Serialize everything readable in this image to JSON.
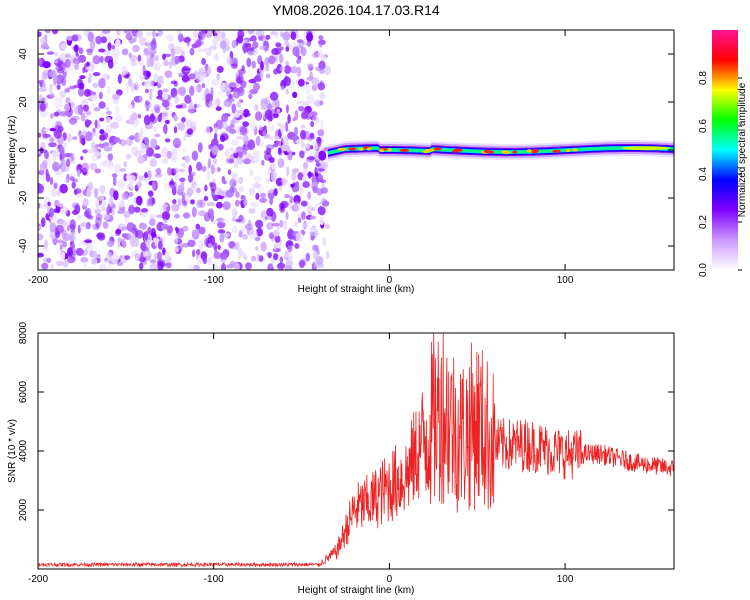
{
  "title": "YM08.2026.104.17.03.R14",
  "chart_data": [
    {
      "type": "heatmap",
      "name": "spectrogram",
      "xlabel": "Height of straight line (km)",
      "ylabel": "Frequency (Hz)",
      "xlim": [
        -200,
        162
      ],
      "ylim": [
        -50,
        50
      ],
      "xticks": [
        -200,
        -100,
        0,
        100
      ],
      "yticks": [
        -40,
        -20,
        0,
        20,
        40
      ],
      "noise_region_x": [
        -200,
        -35
      ],
      "signal_region_x": [
        -35,
        162
      ],
      "signal_center_hz": 0,
      "colorbar": {
        "label": "Normalized spectral amplitude",
        "ticks": [
          0.0,
          0.2,
          0.4,
          0.6,
          0.8
        ],
        "range": [
          0,
          1
        ],
        "colors": [
          "#ffffff",
          "#cc99ff",
          "#7f00ff",
          "#0000ff",
          "#00ffff",
          "#00ff00",
          "#ffff00",
          "#ff0000",
          "#ff1493"
        ]
      }
    },
    {
      "type": "line",
      "name": "snr",
      "xlabel": "Height of straight line (km)",
      "ylabel": "SNR (10 * v/v)",
      "xlim": [
        -200,
        162
      ],
      "ylim": [
        0,
        8000
      ],
      "xticks": [
        -200,
        -100,
        0,
        100
      ],
      "yticks": [
        2000,
        4000,
        6000,
        8000
      ],
      "series": [
        {
          "name": "SNR",
          "color": "#ee2222",
          "x": [
            -200,
            -100,
            -40,
            -30,
            -20,
            -10,
            0,
            10,
            20,
            30,
            40,
            50,
            60,
            80,
            100,
            120,
            140,
            162
          ],
          "y": [
            150,
            150,
            150,
            600,
            2000,
            2300,
            2800,
            3200,
            4500,
            5500,
            4500,
            5000,
            4200,
            4200,
            3900,
            3900,
            3600,
            3400
          ]
        }
      ]
    }
  ]
}
